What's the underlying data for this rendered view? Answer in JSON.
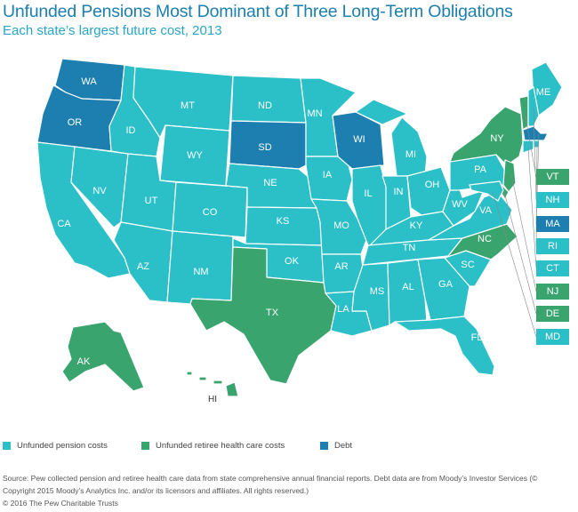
{
  "title": "Unfunded Pensions Most Dominant of Three Long-Term Obligations",
  "subtitle": "Each state’s largest future cost, 2013",
  "colors": {
    "pension": "#2bbfc8",
    "health": "#3aa46e",
    "debt": "#1c7fb0",
    "title": "#1d7fae"
  },
  "states": {
    "WA": "debt",
    "OR": "debt",
    "CA": "pension",
    "NV": "pension",
    "ID": "pension",
    "MT": "pension",
    "WY": "pension",
    "UT": "pension",
    "AZ": "pension",
    "CO": "pension",
    "NM": "pension",
    "ND": "pension",
    "SD": "debt",
    "NE": "pension",
    "KS": "pension",
    "OK": "pension",
    "TX": "health",
    "MN": "pension",
    "IA": "pension",
    "MO": "pension",
    "AR": "pension",
    "LA": "pension",
    "WI": "debt",
    "IL": "pension",
    "MI": "pension",
    "IN": "pension",
    "OH": "pension",
    "KY": "pension",
    "TN": "pension",
    "MS": "pension",
    "AL": "pension",
    "GA": "pension",
    "FL": "pension",
    "SC": "pension",
    "NC": "health",
    "VA": "pension",
    "WV": "pension",
    "PA": "pension",
    "NY": "health",
    "ME": "pension",
    "VT": "health",
    "NH": "pension",
    "MA": "debt",
    "RI": "pension",
    "CT": "pension",
    "NJ": "health",
    "DE": "health",
    "MD": "pension",
    "AK": "health",
    "HI": "health"
  },
  "small_states": [
    {
      "label": "VT",
      "cat": "health"
    },
    {
      "label": "NH",
      "cat": "pension"
    },
    {
      "label": "MA",
      "cat": "debt"
    },
    {
      "label": "RI",
      "cat": "pension"
    },
    {
      "label": "CT",
      "cat": "pension"
    },
    {
      "label": "NJ",
      "cat": "health"
    },
    {
      "label": "DE",
      "cat": "health"
    },
    {
      "label": "MD",
      "cat": "pension"
    }
  ],
  "legend": {
    "pension": "Unfunded pension costs",
    "health": "Unfunded retiree health care costs",
    "debt": "Debt"
  },
  "source": "Source: Pew collected pension and retiree health care data from state comprehensive annual financial reports. Debt data are from Moody’s Investor Services (© Copyright 2015 Moody’s Analytics Inc. and/or its licensors and affiliates. All rights reserved.)",
  "copyright": "© 2016 The Pew Charitable Trusts"
}
